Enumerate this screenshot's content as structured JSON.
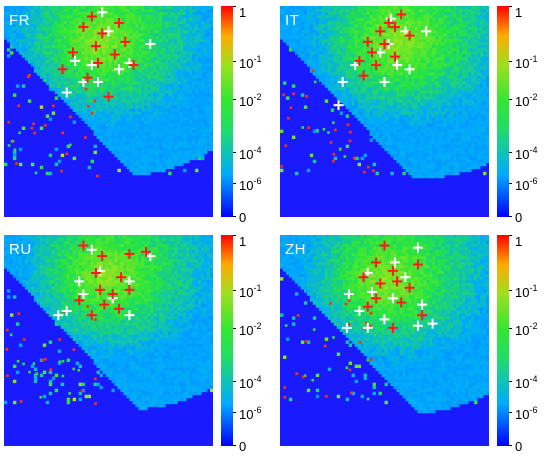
{
  "colors": {
    "background_low": "#0000ff",
    "mid": "#33e633",
    "high": "#ff0000",
    "marker_red": "#ff1a1a",
    "marker_white": "#ffffff"
  },
  "colorbar": {
    "tick_labels": [
      {
        "base": "1",
        "exp": ""
      },
      {
        "base": "10",
        "exp": "-1"
      },
      {
        "base": "10",
        "exp": "-2"
      },
      {
        "base": "10",
        "exp": "-4"
      },
      {
        "base": "10",
        "exp": "-6"
      },
      {
        "base": "0",
        "exp": ""
      }
    ]
  },
  "chart_data": [
    {
      "type": "heatmap",
      "panel_label": "FR",
      "colorbar_scale": "log",
      "colorbar_range": [
        0,
        1
      ],
      "markers": {
        "red": [
          [
            0.42,
            0.05
          ],
          [
            0.55,
            0.08
          ],
          [
            0.38,
            0.1
          ],
          [
            0.47,
            0.13
          ],
          [
            0.58,
            0.17
          ],
          [
            0.44,
            0.19
          ],
          [
            0.33,
            0.22
          ],
          [
            0.53,
            0.23
          ],
          [
            0.45,
            0.27
          ],
          [
            0.62,
            0.28
          ],
          [
            0.4,
            0.34
          ],
          [
            0.5,
            0.43
          ],
          [
            0.28,
            0.3
          ]
        ],
        "white": [
          [
            0.47,
            0.03
          ],
          [
            0.5,
            0.12
          ],
          [
            0.7,
            0.18
          ],
          [
            0.34,
            0.26
          ],
          [
            0.42,
            0.28
          ],
          [
            0.55,
            0.3
          ],
          [
            0.38,
            0.36
          ],
          [
            0.45,
            0.36
          ],
          [
            0.3,
            0.41
          ],
          [
            0.6,
            0.27
          ]
        ]
      }
    },
    {
      "type": "heatmap",
      "panel_label": "IT",
      "colorbar_scale": "log",
      "colorbar_range": [
        0,
        1
      ],
      "markers": {
        "red": [
          [
            0.58,
            0.04
          ],
          [
            0.55,
            0.1
          ],
          [
            0.48,
            0.12
          ],
          [
            0.42,
            0.17
          ],
          [
            0.5,
            0.18
          ],
          [
            0.44,
            0.22
          ],
          [
            0.55,
            0.24
          ],
          [
            0.38,
            0.26
          ],
          [
            0.46,
            0.28
          ],
          [
            0.62,
            0.14
          ],
          [
            0.4,
            0.33
          ],
          [
            0.52,
            0.08
          ]
        ],
        "white": [
          [
            0.53,
            0.06
          ],
          [
            0.6,
            0.12
          ],
          [
            0.7,
            0.12
          ],
          [
            0.52,
            0.18
          ],
          [
            0.48,
            0.22
          ],
          [
            0.36,
            0.28
          ],
          [
            0.56,
            0.28
          ],
          [
            0.62,
            0.3
          ],
          [
            0.3,
            0.36
          ],
          [
            0.5,
            0.36
          ],
          [
            0.28,
            0.47
          ]
        ]
      }
    },
    {
      "type": "heatmap",
      "panel_label": "RU",
      "colorbar_scale": "log",
      "colorbar_range": [
        0,
        1
      ],
      "markers": {
        "red": [
          [
            0.38,
            0.05
          ],
          [
            0.47,
            0.1
          ],
          [
            0.6,
            0.09
          ],
          [
            0.68,
            0.08
          ],
          [
            0.44,
            0.18
          ],
          [
            0.56,
            0.2
          ],
          [
            0.46,
            0.26
          ],
          [
            0.52,
            0.28
          ],
          [
            0.6,
            0.26
          ],
          [
            0.36,
            0.31
          ],
          [
            0.48,
            0.33
          ],
          [
            0.55,
            0.35
          ],
          [
            0.42,
            0.38
          ]
        ],
        "white": [
          [
            0.42,
            0.07
          ],
          [
            0.7,
            0.1
          ],
          [
            0.46,
            0.17
          ],
          [
            0.36,
            0.22
          ],
          [
            0.6,
            0.22
          ],
          [
            0.38,
            0.28
          ],
          [
            0.52,
            0.3
          ],
          [
            0.3,
            0.36
          ],
          [
            0.26,
            0.38
          ],
          [
            0.6,
            0.38
          ]
        ]
      }
    },
    {
      "type": "heatmap",
      "panel_label": "ZH",
      "colorbar_scale": "log",
      "colorbar_range": [
        0,
        1
      ],
      "markers": {
        "red": [
          [
            0.5,
            0.05
          ],
          [
            0.46,
            0.13
          ],
          [
            0.54,
            0.17
          ],
          [
            0.66,
            0.14
          ],
          [
            0.4,
            0.2
          ],
          [
            0.48,
            0.23
          ],
          [
            0.56,
            0.22
          ],
          [
            0.62,
            0.25
          ],
          [
            0.46,
            0.3
          ],
          [
            0.58,
            0.32
          ],
          [
            0.42,
            0.34
          ],
          [
            0.68,
            0.38
          ],
          [
            0.54,
            0.44
          ]
        ],
        "white": [
          [
            0.66,
            0.06
          ],
          [
            0.55,
            0.13
          ],
          [
            0.42,
            0.18
          ],
          [
            0.6,
            0.2
          ],
          [
            0.33,
            0.28
          ],
          [
            0.44,
            0.27
          ],
          [
            0.54,
            0.3
          ],
          [
            0.38,
            0.36
          ],
          [
            0.68,
            0.33
          ],
          [
            0.5,
            0.4
          ],
          [
            0.66,
            0.43
          ],
          [
            0.73,
            0.42
          ],
          [
            0.32,
            0.44
          ],
          [
            0.42,
            0.44
          ]
        ]
      }
    }
  ]
}
